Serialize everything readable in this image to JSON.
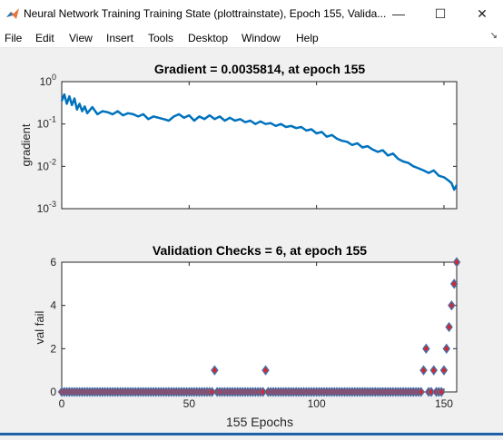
{
  "window": {
    "title": "Neural Network Training Training State (plottrainstate), Epoch 155, Valida...",
    "minimize_glyph": "—",
    "maximize_glyph": "☐",
    "close_glyph": "✕"
  },
  "menu": {
    "items": [
      "File",
      "Edit",
      "View",
      "Insert",
      "Tools",
      "Desktop",
      "Window",
      "Help"
    ],
    "dock_glyph": "↘"
  },
  "colors": {
    "line": "#0072bd",
    "marker_fill": "#d9262c",
    "marker_edge": "#4a6fa5"
  },
  "chart_data": [
    {
      "type": "line",
      "title": "Gradient = 0.0035814, at epoch 155",
      "ylabel": "gradient",
      "yscale": "log",
      "ylim": [
        0.001,
        1
      ],
      "xlim": [
        0,
        155
      ],
      "yticks": [
        {
          "base": "10",
          "exp": "0"
        },
        {
          "base": "10",
          "exp": "-1"
        },
        {
          "base": "10",
          "exp": "-2"
        },
        {
          "base": "10",
          "exp": "-3"
        }
      ],
      "x": [
        0,
        1,
        2,
        3,
        4,
        5,
        6,
        7,
        8,
        9,
        10,
        12,
        14,
        16,
        18,
        20,
        22,
        24,
        26,
        28,
        30,
        32,
        34,
        36,
        38,
        40,
        42,
        44,
        46,
        48,
        50,
        52,
        54,
        56,
        58,
        60,
        62,
        64,
        66,
        68,
        70,
        72,
        74,
        76,
        78,
        80,
        82,
        84,
        86,
        88,
        90,
        92,
        94,
        96,
        98,
        100,
        102,
        104,
        106,
        108,
        110,
        112,
        114,
        116,
        118,
        120,
        122,
        124,
        126,
        128,
        130,
        132,
        134,
        136,
        138,
        140,
        142,
        144,
        146,
        148,
        150,
        151,
        152,
        153,
        154,
        155
      ],
      "y": [
        0.35,
        0.5,
        0.3,
        0.45,
        0.28,
        0.4,
        0.22,
        0.3,
        0.2,
        0.26,
        0.18,
        0.25,
        0.17,
        0.2,
        0.19,
        0.17,
        0.2,
        0.16,
        0.18,
        0.17,
        0.15,
        0.17,
        0.13,
        0.15,
        0.14,
        0.13,
        0.12,
        0.15,
        0.17,
        0.14,
        0.16,
        0.12,
        0.15,
        0.13,
        0.16,
        0.13,
        0.15,
        0.12,
        0.14,
        0.12,
        0.13,
        0.11,
        0.12,
        0.1,
        0.115,
        0.1,
        0.105,
        0.09,
        0.1,
        0.085,
        0.09,
        0.08,
        0.085,
        0.07,
        0.075,
        0.06,
        0.065,
        0.05,
        0.055,
        0.045,
        0.04,
        0.038,
        0.032,
        0.035,
        0.028,
        0.03,
        0.025,
        0.022,
        0.024,
        0.018,
        0.02,
        0.015,
        0.013,
        0.012,
        0.01,
        0.009,
        0.008,
        0.007,
        0.008,
        0.006,
        0.0055,
        0.005,
        0.0045,
        0.004,
        0.0028,
        0.0036
      ]
    },
    {
      "type": "scatter",
      "title": "Validation Checks = 6, at epoch 155",
      "ylabel": "val fail",
      "xlabel": "155 Epochs",
      "xlim": [
        0,
        155
      ],
      "ylim": [
        0,
        6
      ],
      "xticks": [
        "0",
        "50",
        "100",
        "150"
      ],
      "yticks": [
        "0",
        "2",
        "4",
        "6"
      ],
      "nonzero": [
        {
          "x": 60,
          "y": 1
        },
        {
          "x": 80,
          "y": 1
        },
        {
          "x": 142,
          "y": 1
        },
        {
          "x": 143,
          "y": 2
        },
        {
          "x": 146,
          "y": 1
        },
        {
          "x": 150,
          "y": 1
        },
        {
          "x": 151,
          "y": 2
        },
        {
          "x": 152,
          "y": 3
        },
        {
          "x": 153,
          "y": 4
        },
        {
          "x": 154,
          "y": 5
        },
        {
          "x": 155,
          "y": 6
        }
      ]
    }
  ]
}
